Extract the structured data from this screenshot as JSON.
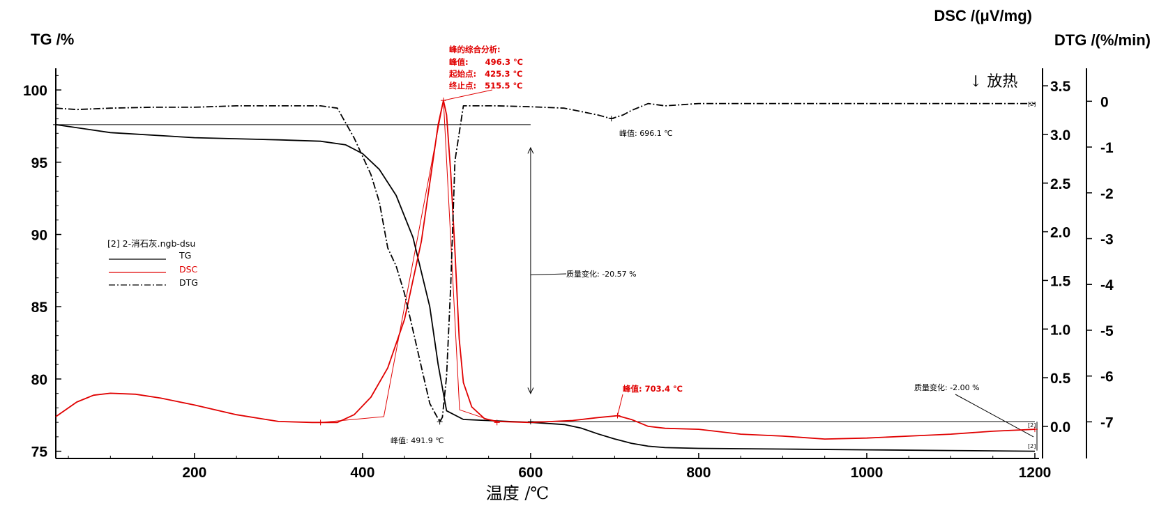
{
  "chart_data": {
    "type": "line",
    "title": "",
    "xlabel": "温度 /℃",
    "xlim": [
      35,
      1205
    ],
    "xticks": [
      200,
      400,
      600,
      800,
      1000,
      1200
    ],
    "axes": {
      "tg": {
        "label": "TG /%",
        "lim": [
          74.5,
          101.5
        ],
        "ticks": [
          75,
          80,
          85,
          90,
          95,
          100
        ]
      },
      "dsc": {
        "label": "DSC /(μV/mg)",
        "lim": [
          -0.33,
          3.68
        ],
        "ticks": [
          "0.0",
          "0.5",
          "1.0",
          "1.5",
          "2.0",
          "2.5",
          "3.0",
          "3.5"
        ]
      },
      "dtg": {
        "label": "DTG /(%/min)",
        "lim": [
          -7.8,
          0.72
        ],
        "ticks": [
          "0",
          "-1",
          "-2",
          "-3",
          "-4",
          "-5",
          "-6",
          "-7"
        ]
      }
    },
    "series": [
      {
        "name": "TG",
        "axis": "tg",
        "color": "#000000",
        "style": "solid",
        "x": [
          35,
          100,
          200,
          300,
          350,
          380,
          400,
          420,
          440,
          460,
          480,
          490,
          500,
          520,
          560,
          600,
          640,
          660,
          680,
          700,
          720,
          740,
          760,
          800,
          900,
          1000,
          1100,
          1200
        ],
        "y": [
          97.6,
          97.05,
          96.7,
          96.55,
          96.45,
          96.2,
          95.6,
          94.5,
          92.7,
          89.8,
          85.0,
          81.0,
          77.8,
          77.2,
          77.1,
          77.0,
          76.85,
          76.6,
          76.2,
          75.85,
          75.55,
          75.35,
          75.25,
          75.2,
          75.15,
          75.1,
          75.05,
          75.0
        ]
      },
      {
        "name": "DSC",
        "axis": "dsc",
        "color": "#e00000",
        "style": "solid",
        "x": [
          35,
          60,
          80,
          100,
          130,
          160,
          200,
          250,
          300,
          340,
          370,
          390,
          410,
          430,
          450,
          470,
          480,
          490,
          496.3,
          500,
          505,
          510,
          515,
          520,
          530,
          545,
          560,
          600,
          650,
          680,
          703.4,
          720,
          740,
          760,
          800,
          850,
          900,
          950,
          1000,
          1050,
          1100,
          1150,
          1200
        ],
        "y": [
          0.1,
          0.25,
          0.32,
          0.34,
          0.33,
          0.29,
          0.22,
          0.12,
          0.05,
          0.04,
          0.04,
          0.12,
          0.3,
          0.6,
          1.1,
          1.9,
          2.5,
          3.1,
          3.35,
          3.2,
          2.6,
          1.8,
          0.9,
          0.45,
          0.2,
          0.08,
          0.05,
          0.04,
          0.06,
          0.09,
          0.11,
          0.07,
          0.0,
          -0.02,
          -0.03,
          -0.08,
          -0.1,
          -0.13,
          -0.12,
          -0.1,
          -0.08,
          -0.05,
          -0.03
        ]
      },
      {
        "name": "DTG",
        "axis": "dtg",
        "color": "#000000",
        "style": "dashdot",
        "x": [
          35,
          60,
          100,
          150,
          200,
          250,
          300,
          350,
          370,
          390,
          410,
          420,
          430,
          440,
          450,
          460,
          470,
          480,
          491.9,
          495,
          500,
          505,
          510,
          520,
          560,
          600,
          640,
          680,
          696.1,
          710,
          720,
          740,
          760,
          800,
          900,
          1000,
          1100,
          1200
        ],
        "y": [
          -0.15,
          -0.18,
          -0.15,
          -0.13,
          -0.13,
          -0.1,
          -0.1,
          -0.1,
          -0.15,
          -0.8,
          -1.6,
          -2.2,
          -3.2,
          -3.6,
          -4.2,
          -5.0,
          -5.8,
          -6.6,
          -7.0,
          -6.9,
          -6.0,
          -4.0,
          -1.3,
          -0.1,
          -0.1,
          -0.12,
          -0.15,
          -0.3,
          -0.38,
          -0.3,
          -0.2,
          -0.05,
          -0.1,
          -0.05,
          -0.05,
          -0.05,
          -0.05,
          -0.05
        ]
      }
    ],
    "legend": {
      "title": "[2] 2-消石灰.ngb-dsu",
      "entries": [
        "TG",
        "DSC",
        "DTG"
      ],
      "placement": "middle-left"
    },
    "annotations": {
      "dsc_peak_title": "峰的综合分析:",
      "dsc_peak_line1": "峰值:      496.3 ℃",
      "dsc_peak_line2": "起始点:   425.3 ℃",
      "dsc_peak_line3": "终止点:   515.5 ℃",
      "dtg_peak1": "峰值: 491.9 ℃",
      "dtg_peak2": "峰值: 696.1 ℃",
      "dsc_peak2": "峰值: 703.4 ℃",
      "mass_change1": "质量变化: -20.57 %",
      "mass_change2": "质量变化: -2.00 %",
      "exo": "↓ 放热",
      "marker": "[2]"
    },
    "grid": false
  }
}
